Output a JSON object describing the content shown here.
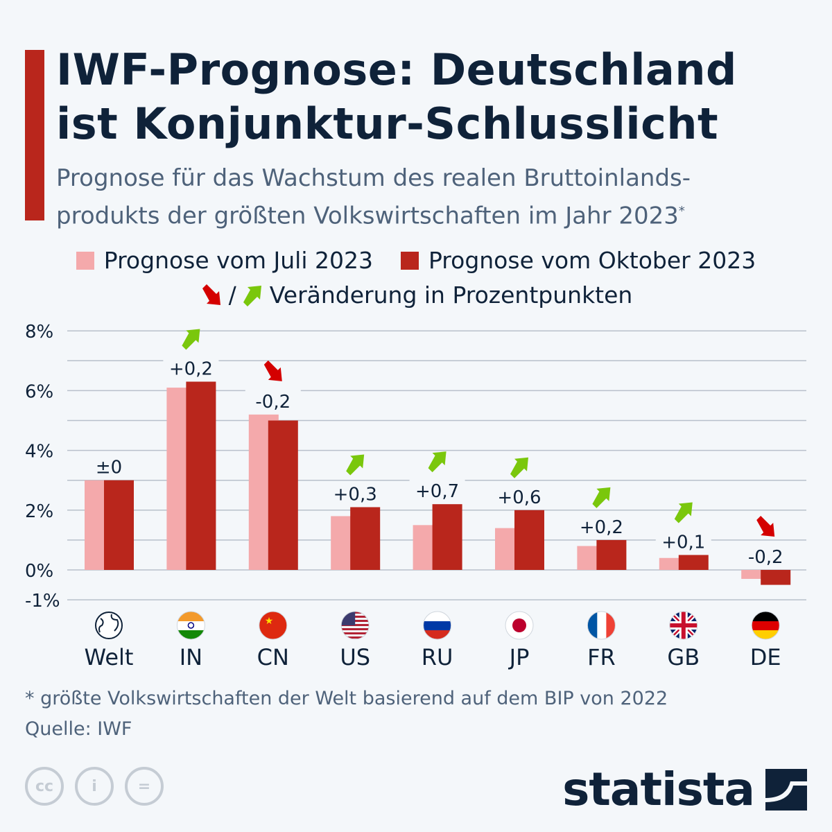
{
  "title_line1": "IWF-Prognose: Deutschland",
  "title_line2": "ist Konjunktur-Schlusslicht",
  "subtitle_line1": "Prognose für das Wachstum des realen Bruttoinlands-",
  "subtitle_line2": "produkts der größten Volkswirtschaften im Jahr 2023",
  "subtitle_mark": "*",
  "legend": {
    "july": "Prognose vom Juli 2023",
    "october": "Prognose vom Oktober 2023",
    "slash": "/",
    "change": "Veränderung in Prozentpunkten"
  },
  "colors": {
    "july": "#f4a9ab",
    "october": "#b9261c",
    "up": "#7ac70c",
    "down": "#d40000",
    "accent": "#b9261c"
  },
  "chart_data": {
    "type": "bar",
    "categories": [
      "Welt",
      "IN",
      "CN",
      "US",
      "RU",
      "JP",
      "FR",
      "GB",
      "DE"
    ],
    "series": [
      {
        "name": "Prognose vom Juli 2023",
        "values": [
          3.0,
          6.1,
          5.2,
          1.8,
          1.5,
          1.4,
          0.8,
          0.4,
          -0.3
        ]
      },
      {
        "name": "Prognose vom Oktober 2023",
        "values": [
          3.0,
          6.3,
          5.0,
          2.1,
          2.2,
          2.0,
          1.0,
          0.5,
          -0.5
        ]
      }
    ],
    "change_labels": [
      "±0",
      "+0,2",
      "-0,2",
      "+0,3",
      "+0,7",
      "+0,6",
      "+0,2",
      "+0,1",
      "-0,2"
    ],
    "change_direction": [
      "none",
      "up",
      "down",
      "up",
      "up",
      "up",
      "up",
      "up",
      "down"
    ],
    "flags": [
      "globe-icon",
      "flag-india-icon",
      "flag-china-icon",
      "flag-usa-icon",
      "flag-russia-icon",
      "flag-japan-icon",
      "flag-france-icon",
      "flag-uk-icon",
      "flag-germany-icon"
    ],
    "yticks": [
      8,
      6,
      4,
      2,
      0,
      -1
    ],
    "ytick_labels": [
      "8%",
      "6%",
      "4%",
      "2%",
      "0%",
      "-1%"
    ],
    "ylim": [
      -1,
      8
    ],
    "grid": true,
    "legend_position": "top"
  },
  "footnote": "* größte Volkswirtschaften der Welt basierend auf dem BIP von 2022",
  "source": "Quelle: IWF",
  "license_icons": [
    "cc",
    "by",
    "nd"
  ],
  "license_labels": [
    "cc",
    "i",
    "="
  ],
  "brand": "statista"
}
